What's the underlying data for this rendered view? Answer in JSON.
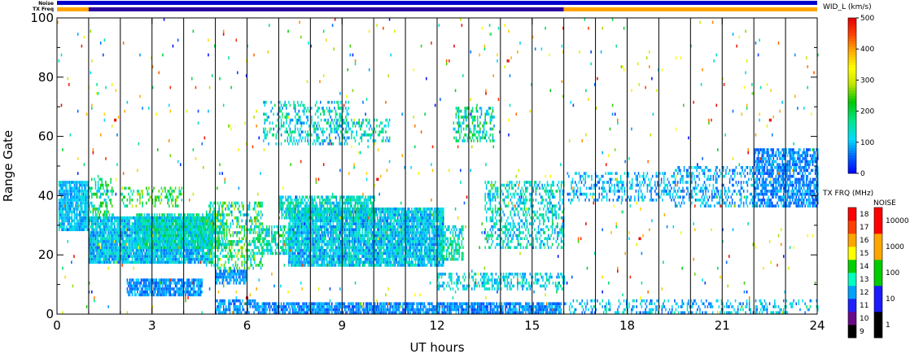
{
  "chart_data": {
    "type": "heatmap",
    "xlabel": "UT hours",
    "ylabel": "Range Gate",
    "xlim": [
      0,
      24
    ],
    "ylim": [
      0,
      100
    ],
    "x_ticks": [
      "0",
      "3",
      "6",
      "9",
      "12",
      "15",
      "18",
      "21",
      "24"
    ],
    "y_ticks": [
      "0",
      "20",
      "40",
      "60",
      "80",
      "100"
    ],
    "scan_boundaries_hours": [
      1,
      2,
      3,
      4,
      5,
      6,
      7,
      8,
      9,
      10,
      11,
      12,
      13,
      14,
      15,
      16,
      17,
      18,
      19,
      20,
      21,
      22,
      23
    ],
    "status_bars": {
      "noise_label": "Noise",
      "txfreq_label": "TX Freq",
      "noise_color": "#0000cc",
      "txfreq_segments": [
        {
          "start": 0,
          "end": 1,
          "color": "#ffa500"
        },
        {
          "start": 1,
          "end": 16,
          "color": "#2a00a0"
        },
        {
          "start": 16,
          "end": 24,
          "color": "#ffa500"
        }
      ]
    },
    "main_colorbar": {
      "title": "WID_L (km/s)",
      "range": [
        0,
        500
      ],
      "ticks": [
        "0",
        "100",
        "200",
        "300",
        "400",
        "500"
      ]
    },
    "txfreq_colorbar": {
      "title": "TX FRQ (MHz)",
      "ticks": [
        "9",
        "10",
        "11",
        "12",
        "13",
        "14",
        "15",
        "16",
        "17",
        "18"
      ],
      "colors": [
        "#000000",
        "#6a0a8a",
        "#2020ff",
        "#00a0ff",
        "#00ffc0",
        "#00d000",
        "#ffff00",
        "#ffa500",
        "#ff4000",
        "#ff0000"
      ]
    },
    "noise_colorbar": {
      "title": "NOISE",
      "ticks": [
        "1",
        "10",
        "100",
        "1000",
        "10000"
      ],
      "colors": [
        "#000000",
        "#1a1aff",
        "#00cc00",
        "#ffa500",
        "#ff0000"
      ]
    },
    "regions": [
      {
        "x0": 0.05,
        "x1": 1.0,
        "y0": 28,
        "y1": 45,
        "density": 0.9,
        "c0": 60,
        "c1": 140
      },
      {
        "x0": 1.0,
        "x1": 4.9,
        "y0": 17,
        "y1": 33,
        "density": 0.92,
        "c0": 50,
        "c1": 160
      },
      {
        "x0": 2.5,
        "x1": 5.3,
        "y0": 22,
        "y1": 34,
        "density": 0.7,
        "c0": 80,
        "c1": 220
      },
      {
        "x0": 1.0,
        "x1": 1.8,
        "y0": 32,
        "y1": 46,
        "density": 0.35,
        "c0": 90,
        "c1": 250
      },
      {
        "x0": 2.0,
        "x1": 4.0,
        "y0": 36,
        "y1": 43,
        "density": 0.3,
        "c0": 120,
        "c1": 300
      },
      {
        "x0": 4.7,
        "x1": 6.5,
        "y0": 15,
        "y1": 38,
        "density": 0.45,
        "c0": 70,
        "c1": 300
      },
      {
        "x0": 2.2,
        "x1": 4.6,
        "y0": 6,
        "y1": 12,
        "density": 0.85,
        "c0": 40,
        "c1": 110
      },
      {
        "x0": 5.0,
        "x1": 6.0,
        "y0": 10,
        "y1": 15,
        "density": 0.8,
        "c0": 40,
        "c1": 110
      },
      {
        "x0": 5.0,
        "x1": 6.3,
        "y0": 0,
        "y1": 5,
        "density": 0.65,
        "c0": 40,
        "c1": 110
      },
      {
        "x0": 6.3,
        "x1": 15.9,
        "y0": 0,
        "y1": 4,
        "density": 0.85,
        "c0": 30,
        "c1": 110
      },
      {
        "x0": 7.3,
        "x1": 12.2,
        "y0": 16,
        "y1": 36,
        "density": 0.92,
        "c0": 50,
        "c1": 170
      },
      {
        "x0": 7.0,
        "x1": 10.0,
        "y0": 32,
        "y1": 40,
        "density": 0.7,
        "c0": 70,
        "c1": 200
      },
      {
        "x0": 6.2,
        "x1": 7.4,
        "y0": 20,
        "y1": 30,
        "density": 0.55,
        "c0": 80,
        "c1": 230
      },
      {
        "x0": 12.0,
        "x1": 12.8,
        "y0": 18,
        "y1": 30,
        "density": 0.55,
        "c0": 80,
        "c1": 220
      },
      {
        "x0": 6.5,
        "x1": 9.2,
        "y0": 57,
        "y1": 72,
        "density": 0.35,
        "c0": 50,
        "c1": 200
      },
      {
        "x0": 9.0,
        "x1": 10.5,
        "y0": 58,
        "y1": 66,
        "density": 0.3,
        "c0": 60,
        "c1": 220
      },
      {
        "x0": 12.5,
        "x1": 13.8,
        "y0": 58,
        "y1": 70,
        "density": 0.45,
        "c0": 70,
        "c1": 250
      },
      {
        "x0": 12.0,
        "x1": 16.0,
        "y0": 8,
        "y1": 14,
        "density": 0.4,
        "c0": 60,
        "c1": 180
      },
      {
        "x0": 13.5,
        "x1": 16.0,
        "y0": 22,
        "y1": 45,
        "density": 0.4,
        "c0": 60,
        "c1": 200
      },
      {
        "x0": 16.1,
        "x1": 19.5,
        "y0": 38,
        "y1": 48,
        "density": 0.35,
        "c0": 40,
        "c1": 140
      },
      {
        "x0": 19.5,
        "x1": 22.0,
        "y0": 36,
        "y1": 50,
        "density": 0.35,
        "c0": 40,
        "c1": 140
      },
      {
        "x0": 22.0,
        "x1": 24.0,
        "y0": 36,
        "y1": 56,
        "density": 0.7,
        "c0": 30,
        "c1": 110
      },
      {
        "x0": 16.0,
        "x1": 24.0,
        "y0": 0,
        "y1": 5,
        "density": 0.3,
        "c0": 40,
        "c1": 160
      },
      {
        "x0": 0.0,
        "x1": 24.0,
        "y0": 0,
        "y1": 100,
        "density": 0.012,
        "c0": 0,
        "c1": 500
      }
    ]
  }
}
